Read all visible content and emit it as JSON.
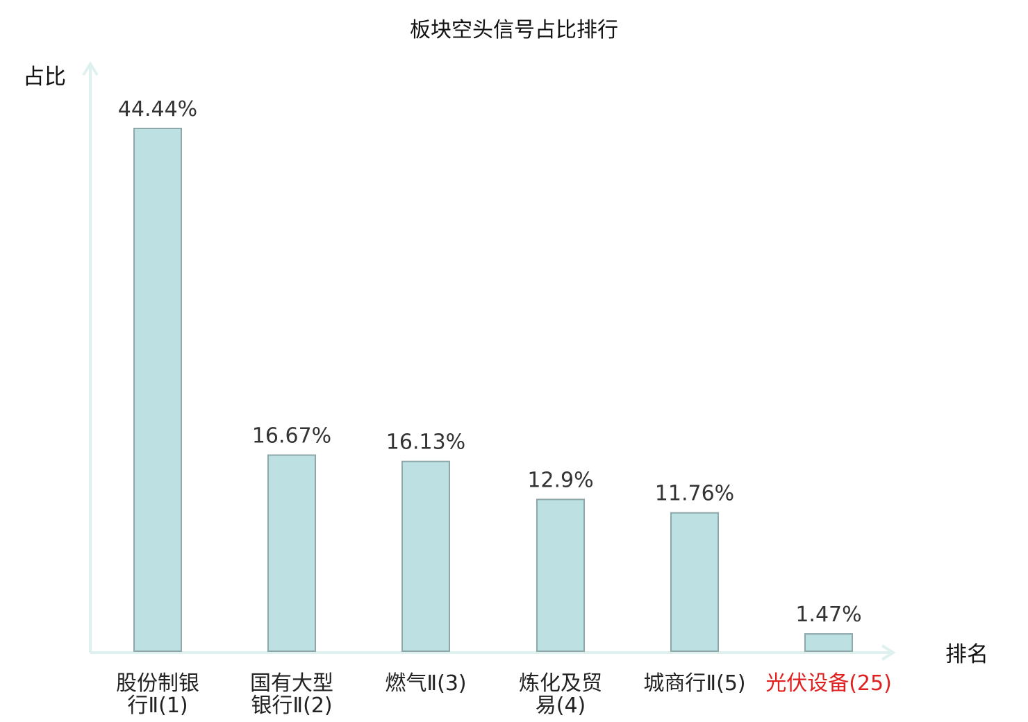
{
  "chart_data": {
    "type": "bar",
    "title": "板块空头信号占比排行",
    "ylabel": "占比",
    "xlabel": "排名",
    "ylim": [
      0,
      50
    ],
    "grid": false,
    "legend": "none",
    "categories": [
      [
        "股份制银",
        "行Ⅱ(1)"
      ],
      [
        "国有大型",
        "银行Ⅱ(2)"
      ],
      [
        "燃气Ⅱ(3)"
      ],
      [
        "炼化及贸",
        "易(4)"
      ],
      [
        "城商行Ⅱ(5)"
      ],
      [
        "光伏设备(25)"
      ]
    ],
    "values": [
      44.44,
      16.67,
      16.13,
      12.9,
      11.76,
      1.47
    ],
    "value_labels": [
      "44.44%",
      "16.67%",
      "16.13%",
      "12.9%",
      "11.76%",
      "1.47%"
    ],
    "highlight_index": 5,
    "colors": {
      "bar_fill": "#bde0e3",
      "bar_stroke": "#8ea8aa",
      "axis": "#dff1ee",
      "text": "#333333",
      "title": "#111111",
      "highlight": "#e02020"
    }
  }
}
